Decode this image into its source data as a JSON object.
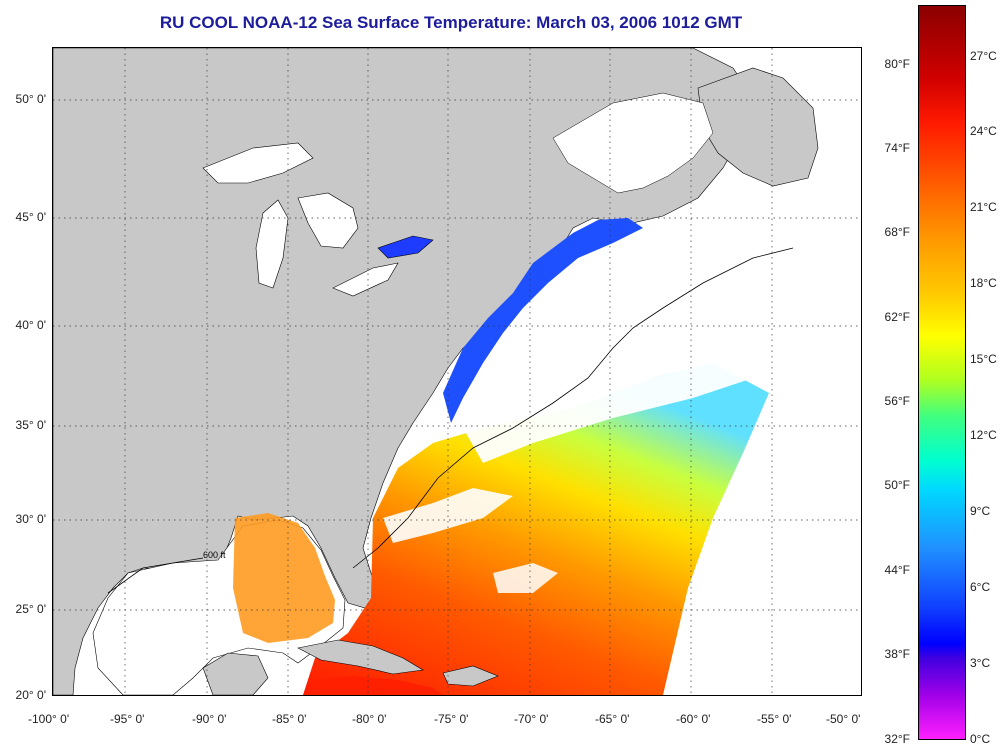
{
  "title": "RU COOL  NOAA-12  Sea Surface Temperature:  March 03, 2006 1012 GMT",
  "axes": {
    "x_ticks": [
      "-100° 0'",
      "-95° 0'",
      "-90° 0'",
      "-85° 0'",
      "-80° 0'",
      "-75° 0'",
      "-70° 0'",
      "-65° 0'",
      "-60° 0'",
      "-55° 0'",
      "-50° 0'"
    ],
    "y_ticks": [
      "50° 0'",
      "45° 0'",
      "40° 0'",
      "35° 0'",
      "30° 0'",
      "25° 0'",
      "20° 0'"
    ]
  },
  "colorbar": {
    "fahrenheit": [
      "80°F",
      "74°F",
      "68°F",
      "62°F",
      "56°F",
      "50°F",
      "44°F",
      "38°F",
      "32°F"
    ],
    "celsius": [
      "27°C",
      "24°C",
      "21°C",
      "18°C",
      "15°C",
      "12°C",
      "9°C",
      "6°C",
      "3°C",
      "0°C"
    ]
  },
  "contour_label": "600 ft",
  "colors": {
    "land": "#c8c8c8",
    "no_data": "#ffffff",
    "title": "#1c1c9c"
  }
}
